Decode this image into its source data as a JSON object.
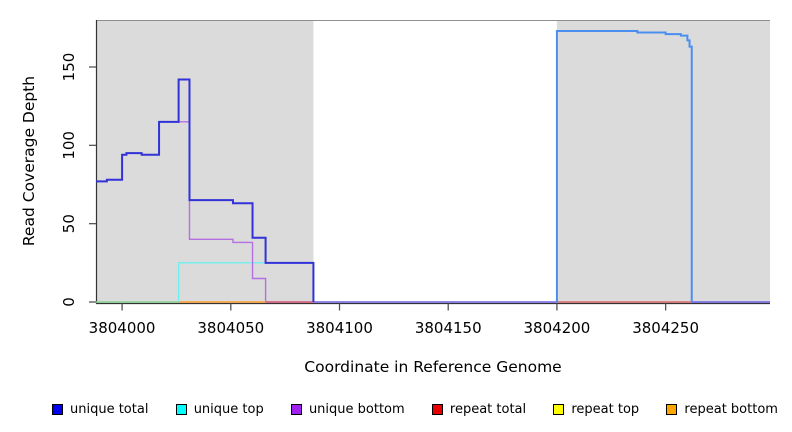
{
  "chart_data": {
    "type": "line",
    "title": "",
    "xlabel": "Coordinate in Reference Genome",
    "ylabel": "Read Coverage Depth",
    "xlim": [
      3803988,
      3804298
    ],
    "ylim": [
      0,
      180
    ],
    "xticks": [
      3804000,
      3804050,
      3804100,
      3804150,
      3804200,
      3804250
    ],
    "yticks": [
      0,
      50,
      100,
      150
    ],
    "grid": false,
    "legend_position": "bottom",
    "shaded_region_color": "#dbdbdb",
    "shaded_regions": [
      {
        "x0": 3803988,
        "x1": 3804088
      },
      {
        "x0": 3804200,
        "x1": 3804298
      }
    ],
    "baseline_overlaps": [
      {
        "label": "unique top + repeat top overlap",
        "color": "#85d495",
        "lw": 1.4,
        "points": [
          [
            3803988,
            0
          ],
          [
            3804026,
            0
          ]
        ]
      },
      {
        "label": "unique total + unique bottom overlap",
        "color": "#6f61e8",
        "lw": 1.6,
        "points": [
          [
            3804088,
            0
          ],
          [
            3804200,
            0
          ]
        ]
      },
      {
        "label": "unique total + unique bottom overlap",
        "color": "#6f61e8",
        "lw": 1.6,
        "points": [
          [
            3804262,
            0
          ],
          [
            3804298,
            0
          ]
        ]
      }
    ],
    "series": [
      {
        "name": "unique top",
        "legend_color": "#00ffff",
        "segments": [
          {
            "color": "#70efef",
            "lw": 1.4,
            "points": [
              [
                3804026,
                0
              ],
              [
                3804026,
                25
              ],
              [
                3804088,
                25
              ],
              [
                3804088,
                0
              ]
            ]
          }
        ]
      },
      {
        "name": "unique bottom",
        "legend_color": "#a020f0",
        "segments": [
          {
            "color": "#b46fe0",
            "lw": 1.4,
            "points": [
              [
                3804017,
                115
              ],
              [
                3804031,
                115
              ],
              [
                3804031,
                40
              ],
              [
                3804051,
                40
              ],
              [
                3804051,
                38
              ],
              [
                3804060,
                38
              ],
              [
                3804060,
                15
              ],
              [
                3804066,
                15
              ],
              [
                3804066,
                0
              ],
              [
                3804088,
                0
              ]
            ]
          }
        ]
      },
      {
        "name": "repeat bottom",
        "legend_color": "#ffa500",
        "segments": [
          {
            "color": "#ffa030",
            "lw": 1.6,
            "points": [
              [
                3804026,
                0
              ],
              [
                3804066,
                0
              ]
            ]
          }
        ]
      },
      {
        "name": "repeat top",
        "legend_color": "#ffff00",
        "segments": []
      },
      {
        "name": "repeat total",
        "legend_color": "#e80000",
        "segments": [
          {
            "color": "#e4555e",
            "lw": 1.3,
            "points": [
              [
                3804066,
                0
              ],
              [
                3804088,
                0
              ]
            ]
          },
          {
            "color": "#e4555e",
            "lw": 1.3,
            "points": [
              [
                3804200,
                0
              ],
              [
                3804262,
                0
              ]
            ]
          }
        ]
      },
      {
        "name": "unique total",
        "legend_color": "#0000ee",
        "segments": [
          {
            "color": "#3232d8",
            "lw": 2,
            "points": [
              [
                3803988,
                77
              ],
              [
                3803993,
                77
              ],
              [
                3803993,
                78
              ],
              [
                3804000,
                78
              ],
              [
                3804000,
                94
              ],
              [
                3804002,
                94
              ],
              [
                3804002,
                95
              ],
              [
                3804009,
                95
              ],
              [
                3804009,
                94
              ],
              [
                3804017,
                94
              ],
              [
                3804017,
                115
              ],
              [
                3804026,
                115
              ],
              [
                3804026,
                142
              ],
              [
                3804031,
                142
              ],
              [
                3804031,
                65
              ],
              [
                3804051,
                65
              ],
              [
                3804051,
                63
              ],
              [
                3804060,
                63
              ],
              [
                3804060,
                41
              ],
              [
                3804066,
                41
              ],
              [
                3804066,
                25
              ],
              [
                3804088,
                25
              ],
              [
                3804088,
                0
              ]
            ]
          },
          {
            "color": "#4a8ff0",
            "lw": 2,
            "points": [
              [
                3804200,
                0
              ],
              [
                3804200,
                173
              ],
              [
                3804237,
                173
              ],
              [
                3804237,
                172
              ],
              [
                3804250,
                172
              ],
              [
                3804250,
                171
              ],
              [
                3804257,
                171
              ],
              [
                3804257,
                170
              ],
              [
                3804260,
                170
              ],
              [
                3804260,
                167
              ],
              [
                3804261,
                167
              ],
              [
                3804261,
                163
              ],
              [
                3804262,
                163
              ],
              [
                3804262,
                0
              ]
            ]
          }
        ]
      }
    ],
    "legend": {
      "entries": [
        {
          "label": "unique total",
          "color": "#0000ee"
        },
        {
          "label": "unique top",
          "color": "#00ffff"
        },
        {
          "label": "unique bottom",
          "color": "#a020f0"
        },
        {
          "label": "repeat total",
          "color": "#e80000"
        },
        {
          "label": "repeat top",
          "color": "#ffff00"
        },
        {
          "label": "repeat bottom",
          "color": "#ffa500"
        }
      ]
    }
  }
}
